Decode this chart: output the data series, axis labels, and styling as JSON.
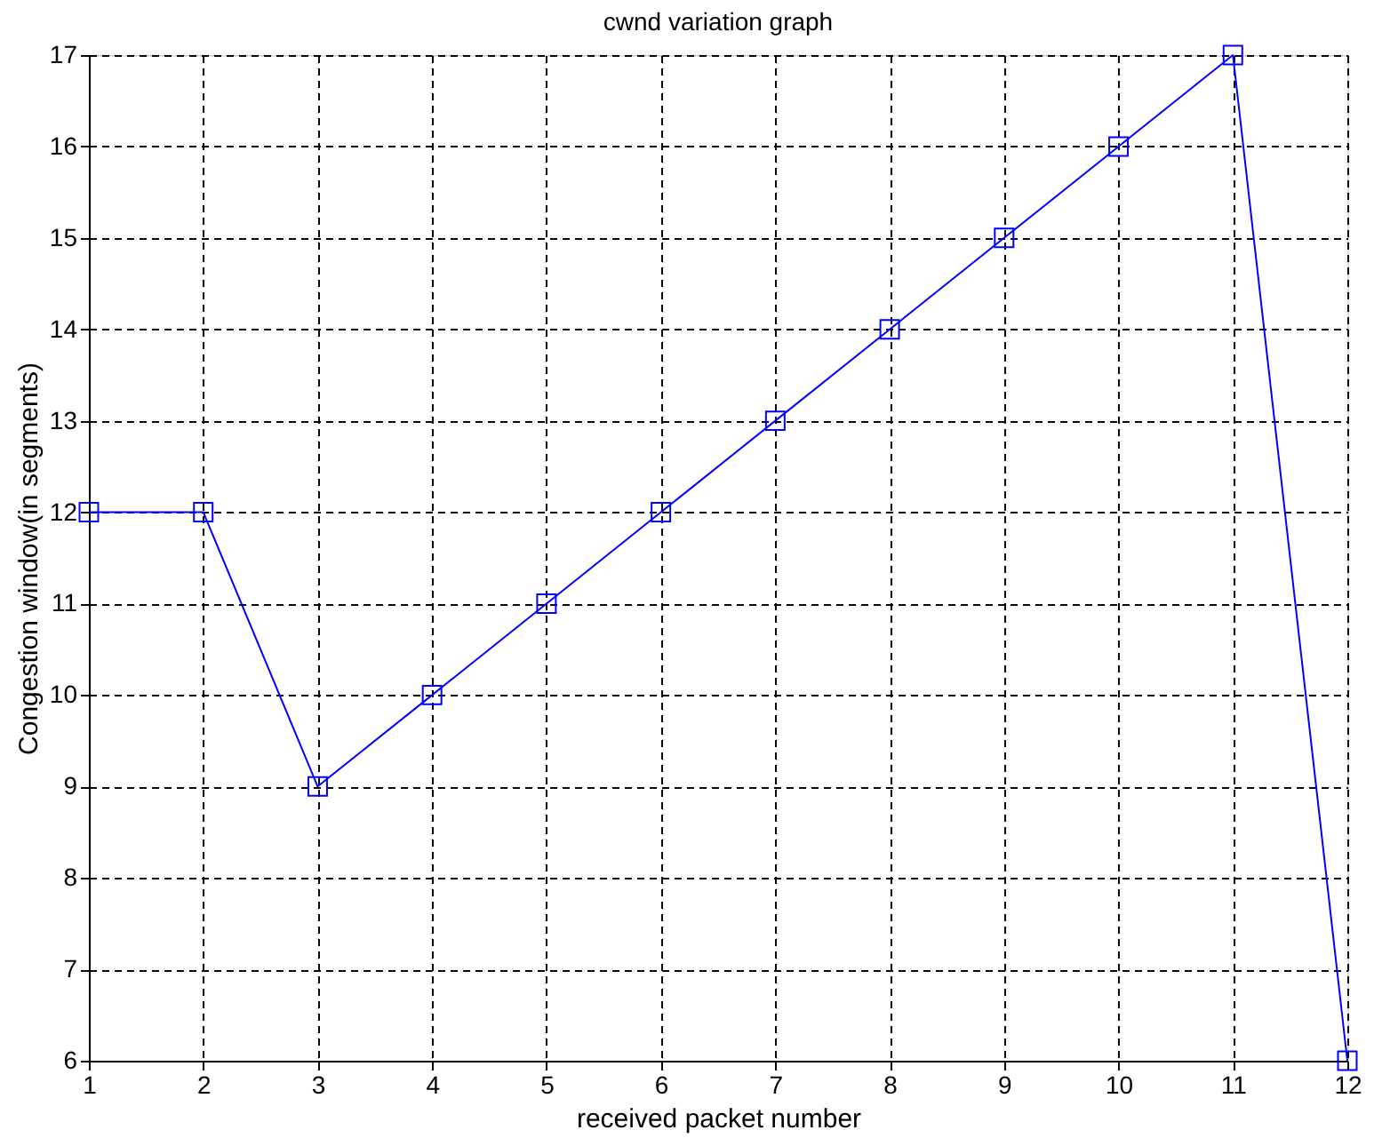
{
  "chart_data": {
    "type": "line",
    "title": "cwnd variation graph",
    "xlabel": "received packet number",
    "ylabel": "Congestion window(in segments)",
    "x": [
      1,
      2,
      3,
      4,
      5,
      6,
      7,
      8,
      9,
      10,
      11,
      12
    ],
    "series": [
      {
        "color": "#0000ff",
        "values": [
          12,
          12,
          9,
          10,
          11,
          12,
          13,
          14,
          15,
          16,
          17,
          6
        ]
      }
    ],
    "xlim": [
      1,
      12
    ],
    "xticks": [
      1,
      2,
      3,
      4,
      5,
      6,
      7,
      8,
      9,
      10,
      11,
      12
    ],
    "ylim": [
      6,
      17
    ],
    "yticks": [
      6,
      7,
      8,
      9,
      10,
      11,
      12,
      13,
      14,
      15,
      16,
      17
    ],
    "grid": true,
    "marker": "square",
    "line_style": "solid"
  }
}
